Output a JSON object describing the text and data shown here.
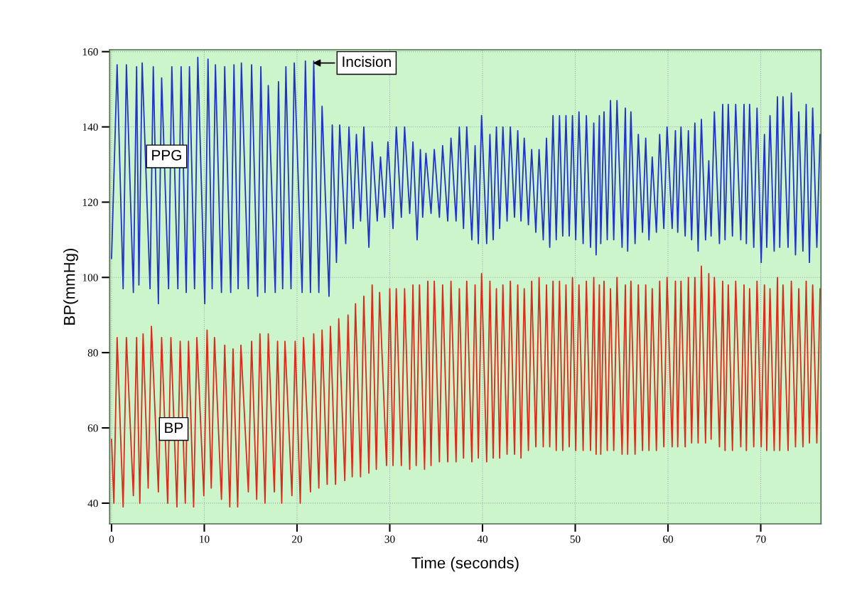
{
  "chart_data": {
    "type": "line",
    "xlabel": "Time (seconds)",
    "ylabel": "BP(mmHg)",
    "xlim": [
      -0.2,
      76.5
    ],
    "ylim": [
      34.5,
      160.5
    ],
    "xticks": [
      0,
      10,
      20,
      30,
      40,
      50,
      60,
      70
    ],
    "yticks": [
      40,
      60,
      80,
      100,
      120,
      140,
      160
    ],
    "grid": true,
    "legend": false,
    "annotations": [
      {
        "text": "Incision",
        "x": 21.5,
        "y": 157
      }
    ],
    "series": [
      {
        "name": "PPG",
        "color": "#2233cc",
        "x": [
          0,
          0.6,
          1.25,
          1.6,
          2.35,
          2.7,
          2.95,
          3.3,
          4.15,
          4.5,
          5.05,
          5.4,
          6.15,
          6.5,
          7.15,
          7.5,
          8.05,
          8.4,
          8.95,
          9.3,
          10.05,
          10.4,
          10.85,
          11.2,
          11.85,
          12.2,
          12.85,
          13.2,
          13.65,
          14.0,
          14.75,
          15.1,
          15.75,
          16.1,
          16.55,
          16.9,
          17.65,
          18.0,
          18.45,
          18.8,
          19.35,
          19.7,
          20.55,
          20.9,
          21.45,
          21.8,
          22.35,
          22.7,
          23.45,
          23.8,
          24.25,
          24.6,
          25.25,
          25.6,
          26.05,
          26.4,
          26.85,
          27.2,
          27.75,
          28.1,
          28.65,
          29.0,
          29.45,
          29.8,
          30.35,
          30.7,
          31.25,
          31.6,
          32.15,
          32.5,
          32.95,
          33.3,
          33.55,
          33.9,
          34.45,
          34.8,
          35.35,
          35.7,
          36.25,
          36.6,
          37.15,
          37.5,
          37.95,
          38.3,
          38.85,
          39.2,
          39.55,
          39.9,
          40.45,
          40.8,
          41.15,
          41.5,
          41.85,
          42.2,
          42.65,
          43.0,
          43.45,
          43.8,
          44.15,
          44.5,
          44.95,
          45.3,
          45.75,
          46.1,
          46.55,
          46.9,
          47.25,
          47.6,
          47.95,
          48.3,
          48.65,
          49.0,
          49.35,
          49.7,
          50.05,
          50.4,
          50.85,
          51.2,
          51.65,
          52.0,
          52.25,
          52.6,
          52.75,
          53.1,
          53.45,
          53.8,
          54.15,
          54.5,
          55.05,
          55.4,
          55.65,
          56.0,
          56.45,
          56.8,
          57.25,
          57.6,
          57.95,
          58.3,
          58.75,
          59.1,
          59.55,
          59.9,
          60.45,
          60.8,
          61.05,
          61.4,
          61.85,
          62.2,
          62.55,
          62.9,
          63.25,
          63.6,
          64.05,
          64.4,
          64.65,
          65.0,
          65.55,
          65.9,
          66.15,
          66.5,
          66.95,
          67.3,
          67.85,
          68.2,
          68.45,
          68.8,
          69.25,
          69.6,
          70.05,
          70.4,
          70.65,
          71.0,
          71.45,
          71.8,
          72.05,
          72.4,
          72.95,
          73.3,
          73.75,
          74.1,
          74.55,
          74.9,
          75.25,
          75.6,
          76.05,
          76.4
        ],
        "values": [
          105,
          156.5,
          97,
          156.5,
          96,
          156,
          98,
          157,
          97,
          156,
          93,
          153,
          97,
          156,
          97,
          156,
          96,
          156,
          97,
          158.5,
          93,
          158,
          97,
          156.5,
          96,
          156,
          96,
          156.5,
          97,
          157,
          97,
          156.5,
          95,
          156,
          96,
          151,
          96,
          152,
          97,
          156,
          97,
          157,
          96,
          157.5,
          96,
          157.5,
          96,
          145.5,
          95,
          140.5,
          104,
          140.5,
          109,
          140,
          113,
          138,
          115,
          140,
          108,
          136,
          115,
          132,
          116,
          136,
          113,
          140,
          116,
          140,
          117,
          136,
          110,
          134,
          116,
          133,
          117,
          134,
          116,
          135,
          115,
          137,
          115,
          140,
          113,
          140,
          110,
          135,
          109,
          143,
          109,
          138,
          110,
          140,
          113,
          140,
          115,
          140,
          116,
          139,
          115,
          137,
          114,
          134,
          112,
          134,
          110,
          137,
          108,
          143,
          110,
          143,
          111,
          143,
          111,
          143,
          110,
          144,
          109,
          143,
          108,
          141,
          106,
          143,
          109,
          144,
          110,
          147,
          110,
          147,
          108,
          145,
          107,
          144,
          109,
          138,
          112,
          137,
          110,
          132,
          112,
          138,
          113,
          140,
          113,
          139,
          112,
          140,
          111,
          139,
          110,
          141,
          107,
          142,
          110,
          131,
          111,
          144,
          109,
          146,
          110,
          146,
          111,
          146,
          110,
          146,
          109,
          146,
          108,
          145,
          104,
          138,
          108,
          143,
          107,
          148,
          108,
          148,
          108,
          149,
          106,
          144,
          107,
          146,
          104,
          145,
          108,
          138
        ]
      },
      {
        "name": "BP",
        "color": "#dd2a1a",
        "x": [
          0,
          0.25,
          0.6,
          1.25,
          1.6,
          2.35,
          2.7,
          3.05,
          3.4,
          3.95,
          4.3,
          5.05,
          5.4,
          6.05,
          6.4,
          7.05,
          7.4,
          7.95,
          8.3,
          8.85,
          9.2,
          9.95,
          10.3,
          10.75,
          11.1,
          11.85,
          12.2,
          12.75,
          13.1,
          13.6,
          13.95,
          14.75,
          15.1,
          15.65,
          16.0,
          16.55,
          16.9,
          17.55,
          17.9,
          18.35,
          18.7,
          19.45,
          19.8,
          20.35,
          20.7,
          21.45,
          21.8,
          22.35,
          22.7,
          23.25,
          23.6,
          24.15,
          24.5,
          25.15,
          25.5,
          25.95,
          26.3,
          26.85,
          27.2,
          27.75,
          28.1,
          28.55,
          28.9,
          29.65,
          30.0,
          30.35,
          30.7,
          31.25,
          31.6,
          32.15,
          32.5,
          32.85,
          33.2,
          33.75,
          34.1,
          34.45,
          34.8,
          35.35,
          35.7,
          36.25,
          36.6,
          37.15,
          37.5,
          37.95,
          38.3,
          38.85,
          39.2,
          39.55,
          39.9,
          40.45,
          40.8,
          41.15,
          41.5,
          41.85,
          42.2,
          42.65,
          43.0,
          43.45,
          43.8,
          44.15,
          44.5,
          44.95,
          45.3,
          45.75,
          46.1,
          46.55,
          46.9,
          47.25,
          47.6,
          47.95,
          48.3,
          48.65,
          49.0,
          49.35,
          49.7,
          50.05,
          50.4,
          50.85,
          51.2,
          51.65,
          52.0,
          52.25,
          52.6,
          52.75,
          53.1,
          53.45,
          53.8,
          54.15,
          54.5,
          55.05,
          55.4,
          55.65,
          56.0,
          56.45,
          56.8,
          57.25,
          57.6,
          57.95,
          58.3,
          58.75,
          59.1,
          59.55,
          59.9,
          60.45,
          60.8,
          61.05,
          61.4,
          61.85,
          62.2,
          62.55,
          62.9,
          63.25,
          63.6,
          64.05,
          64.4,
          64.65,
          65.0,
          65.55,
          65.9,
          66.15,
          66.5,
          66.95,
          67.3,
          67.85,
          68.2,
          68.45,
          68.8,
          69.25,
          69.6,
          70.05,
          70.4,
          70.65,
          71.0,
          71.45,
          71.8,
          72.05,
          72.4,
          72.95,
          73.3,
          73.75,
          74.1,
          74.55,
          74.9,
          75.25,
          75.6,
          76.05,
          76.4
        ],
        "values": [
          57,
          40,
          84,
          39,
          84,
          42,
          84,
          40,
          85,
          44,
          87,
          43,
          84,
          40,
          84,
          39,
          83,
          40,
          83,
          39,
          84,
          42,
          86,
          44,
          84,
          41,
          82,
          39,
          81,
          39,
          82,
          43,
          83,
          41,
          85,
          40,
          85,
          43,
          83,
          40,
          83,
          42,
          83,
          40,
          84,
          43,
          85,
          44,
          86,
          45,
          87,
          45,
          89,
          46,
          90,
          47,
          93,
          47,
          95,
          48,
          98,
          49,
          96,
          50,
          97,
          50,
          97,
          50,
          97,
          49,
          98,
          50,
          98,
          49,
          99,
          50,
          99,
          51,
          98,
          51,
          99,
          51,
          97,
          52,
          99,
          51,
          98,
          52,
          101,
          51,
          99,
          52,
          97,
          52,
          98,
          53,
          99,
          53,
          98,
          52,
          97,
          54,
          99,
          55,
          100,
          55,
          98,
          55,
          99,
          54,
          99,
          54,
          98,
          55,
          100,
          54,
          98,
          54,
          99,
          54,
          100,
          53,
          98,
          53,
          99,
          54,
          97,
          54,
          100,
          53,
          98,
          53,
          99,
          53,
          98,
          54,
          98,
          54,
          97,
          54,
          99,
          55,
          100,
          55,
          99,
          55,
          99,
          55,
          100,
          56,
          100,
          56,
          103,
          56,
          101,
          57,
          100,
          55,
          99,
          54,
          98,
          54,
          99,
          55,
          98,
          54,
          97,
          55,
          99,
          55,
          98,
          54,
          97,
          54,
          100,
          54,
          98,
          54,
          99,
          55,
          97,
          55,
          99,
          56,
          98,
          56,
          97
        ]
      }
    ]
  }
}
